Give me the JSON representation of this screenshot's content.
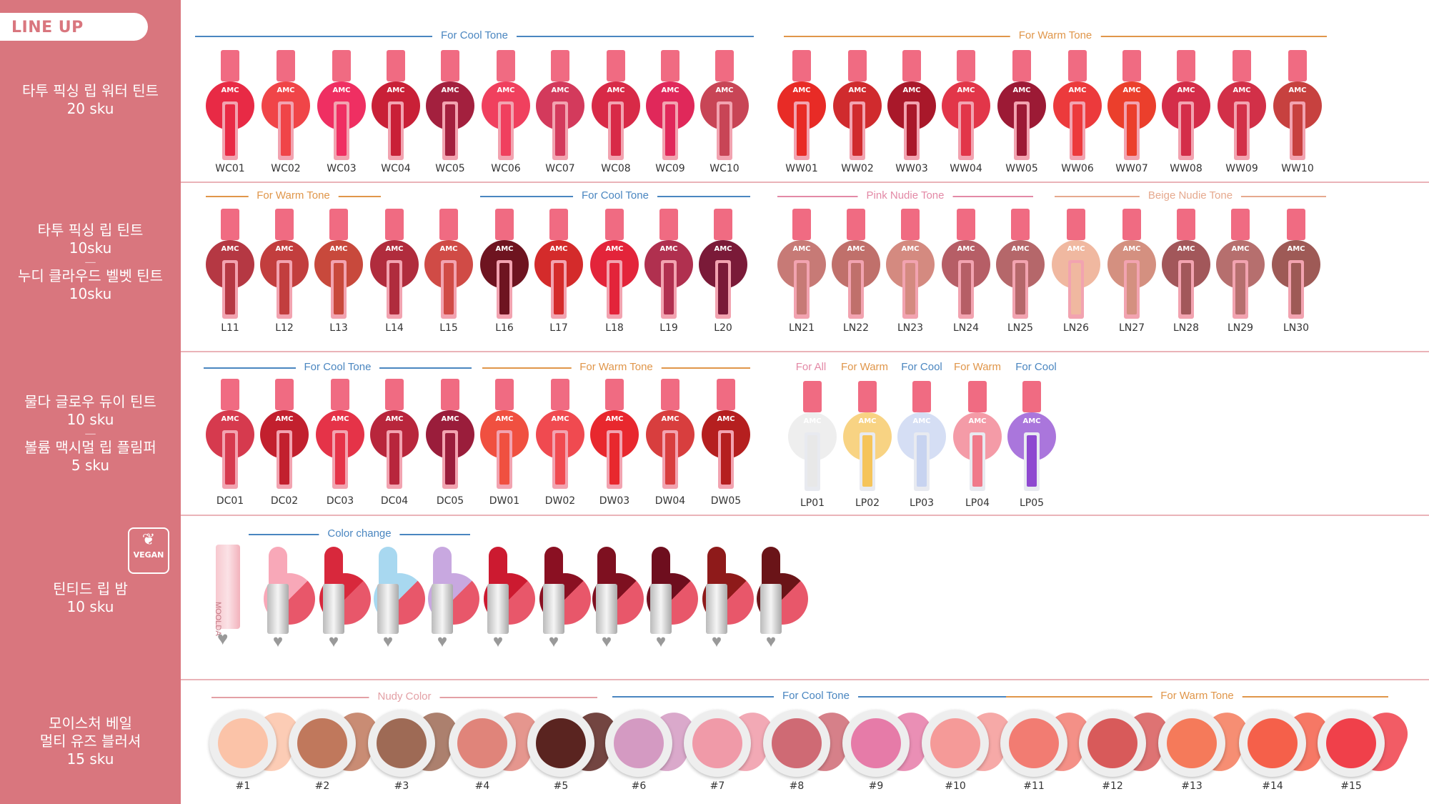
{
  "header": {
    "title": "LINE UP"
  },
  "rows": [
    {
      "label_lines": [
        "타투 픽싱 립 워터 틴트",
        "20 sku"
      ]
    },
    {
      "label_lines": [
        "타투 픽싱 립 틴트",
        "10sku",
        "—",
        "누디 클라우드 벨벳 틴트",
        "10sku"
      ]
    },
    {
      "label_lines": [
        "물다 글로우 듀이 틴트",
        "10 sku",
        "—",
        "볼륨 맥시멀 립 플림퍼",
        "5 sku"
      ]
    },
    {
      "label_lines": [
        "틴티드 립 밤",
        "10 sku"
      ]
    },
    {
      "label_lines": [
        "모이스처 베일",
        "멀티 유즈 블러셔",
        "15 sku"
      ]
    }
  ],
  "badge": {
    "label": "VEGAN",
    "icon": "leaf-icon"
  },
  "logo_text": "AMC",
  "balm_tube_text": "MOOLDA",
  "groups": [
    {
      "label": "For Cool Tone",
      "color": "#4a86c0"
    },
    {
      "label": "For Warm Tone",
      "color": "#e0964a"
    },
    {
      "label": "For Warm Tone",
      "color": "#e0964a"
    },
    {
      "label": "For Cool Tone",
      "color": "#4a86c0"
    },
    {
      "label": "Pink Nudie Tone",
      "color": "#e389a6"
    },
    {
      "label": "Beige Nudie Tone",
      "color": "#e6a98e"
    },
    {
      "label": "For Cool Tone",
      "color": "#4a86c0"
    },
    {
      "label": "For Warm Tone",
      "color": "#e0964a"
    },
    {
      "label": "Color change",
      "color": "#4a86c0"
    },
    {
      "label": "Nudy Color",
      "color": "#e3a0a5"
    },
    {
      "label": "For Cool Tone",
      "color": "#4a86c0"
    },
    {
      "label": "For Warm Tone",
      "color": "#e0964a"
    }
  ],
  "plumper_labels": [
    {
      "label": "For All",
      "color": "#e389a6"
    },
    {
      "label": "For Warm",
      "color": "#e0964a"
    },
    {
      "label": "For Cool",
      "color": "#4a86c0"
    },
    {
      "label": "For Warm",
      "color": "#e0964a"
    },
    {
      "label": "For Cool",
      "color": "#4a86c0"
    }
  ],
  "row1": [
    {
      "code": "WC01",
      "color": "#e82a45"
    },
    {
      "code": "WC02",
      "color": "#f04548"
    },
    {
      "code": "WC03",
      "color": "#ef2f62"
    },
    {
      "code": "WC04",
      "color": "#c92037"
    },
    {
      "code": "WC05",
      "color": "#a3203e"
    },
    {
      "code": "WC06",
      "color": "#f0405e"
    },
    {
      "code": "WC07",
      "color": "#d33a5c"
    },
    {
      "code": "WC08",
      "color": "#d82a47"
    },
    {
      "code": "WC09",
      "color": "#e0285a"
    },
    {
      "code": "WC10",
      "color": "#c84556"
    },
    {
      "code": "WW01",
      "color": "#e82b26"
    },
    {
      "code": "WW02",
      "color": "#d02b2e"
    },
    {
      "code": "WW03",
      "color": "#a9182a"
    },
    {
      "code": "WW04",
      "color": "#e23649"
    },
    {
      "code": "WW05",
      "color": "#9c1a35"
    },
    {
      "code": "WW06",
      "color": "#ec3a3c"
    },
    {
      "code": "WW07",
      "color": "#eb3f2c"
    },
    {
      "code": "WW08",
      "color": "#d42d49"
    },
    {
      "code": "WW09",
      "color": "#d23048"
    },
    {
      "code": "WW10",
      "color": "#c7413f"
    }
  ],
  "row2": [
    {
      "code": "L11",
      "color": "#b53843"
    },
    {
      "code": "L12",
      "color": "#c23e3e"
    },
    {
      "code": "L13",
      "color": "#c8493c"
    },
    {
      "code": "L14",
      "color": "#b02c3d"
    },
    {
      "code": "L15",
      "color": "#d04b46"
    },
    {
      "code": "L16",
      "color": "#6e1420"
    },
    {
      "code": "L17",
      "color": "#d42b2b"
    },
    {
      "code": "L18",
      "color": "#e3243a"
    },
    {
      "code": "L19",
      "color": "#b0304f"
    },
    {
      "code": "L20",
      "color": "#7a1a38"
    },
    {
      "code": "LN21",
      "color": "#c77a76"
    },
    {
      "code": "LN22",
      "color": "#c0706b"
    },
    {
      "code": "LN23",
      "color": "#d48a80"
    },
    {
      "code": "LN24",
      "color": "#b65e66"
    },
    {
      "code": "LN25",
      "color": "#b5676a"
    },
    {
      "code": "LN26",
      "color": "#f0b8a0"
    },
    {
      "code": "LN27",
      "color": "#d49080"
    },
    {
      "code": "LN28",
      "color": "#a2575a"
    },
    {
      "code": "LN29",
      "color": "#b66f6e"
    },
    {
      "code": "LN30",
      "color": "#9e5a56"
    }
  ],
  "row3": [
    {
      "code": "DC01",
      "color": "#d63a4e"
    },
    {
      "code": "DC02",
      "color": "#c2202e"
    },
    {
      "code": "DC03",
      "color": "#e53348"
    },
    {
      "code": "DC04",
      "color": "#b8263c"
    },
    {
      "code": "DC05",
      "color": "#9a1d3b"
    },
    {
      "code": "DW01",
      "color": "#f05040"
    },
    {
      "code": "DW02",
      "color": "#f04a50"
    },
    {
      "code": "DW03",
      "color": "#e8282e"
    },
    {
      "code": "DW04",
      "color": "#d83e3e"
    },
    {
      "code": "DW05",
      "color": "#b51f1f"
    }
  ],
  "row3_plumpers": [
    {
      "code": "LP01",
      "color": "#e8e8e8"
    },
    {
      "code": "LP02",
      "color": "#f5c45a"
    },
    {
      "code": "LP03",
      "color": "#c7d3f0"
    },
    {
      "code": "LP04",
      "color": "#f07a8a"
    },
    {
      "code": "LP05",
      "color": "#8e48d0"
    }
  ],
  "row4": [
    {
      "color": "#f8a8b8"
    },
    {
      "color": "#d8283c"
    },
    {
      "color": "#a8d8f0"
    },
    {
      "color": "#c8a8e0"
    },
    {
      "color": "#cc1a30"
    },
    {
      "color": "#8a1022"
    },
    {
      "color": "#7e1020"
    },
    {
      "color": "#6e0e1e"
    },
    {
      "color": "#8e1a1a"
    },
    {
      "color": "#6a1418"
    }
  ],
  "row5": [
    {
      "code": "#1",
      "color": "#fbc3a8"
    },
    {
      "code": "#2",
      "color": "#c0785c"
    },
    {
      "code": "#3",
      "color": "#9e6a55"
    },
    {
      "code": "#4",
      "color": "#e0847a"
    },
    {
      "code": "#5",
      "color": "#5a2420"
    },
    {
      "code": "#6",
      "color": "#d49ac2"
    },
    {
      "code": "#7",
      "color": "#f09aa8"
    },
    {
      "code": "#8",
      "color": "#cf6a74"
    },
    {
      "code": "#9",
      "color": "#e67ba8"
    },
    {
      "code": "#10",
      "color": "#f59a98"
    },
    {
      "code": "#11",
      "color": "#f27c72"
    },
    {
      "code": "#12",
      "color": "#d85a5a"
    },
    {
      "code": "#13",
      "color": "#f57a5a"
    },
    {
      "code": "#14",
      "color": "#f5604a"
    },
    {
      "code": "#15",
      "color": "#f0404a"
    }
  ]
}
